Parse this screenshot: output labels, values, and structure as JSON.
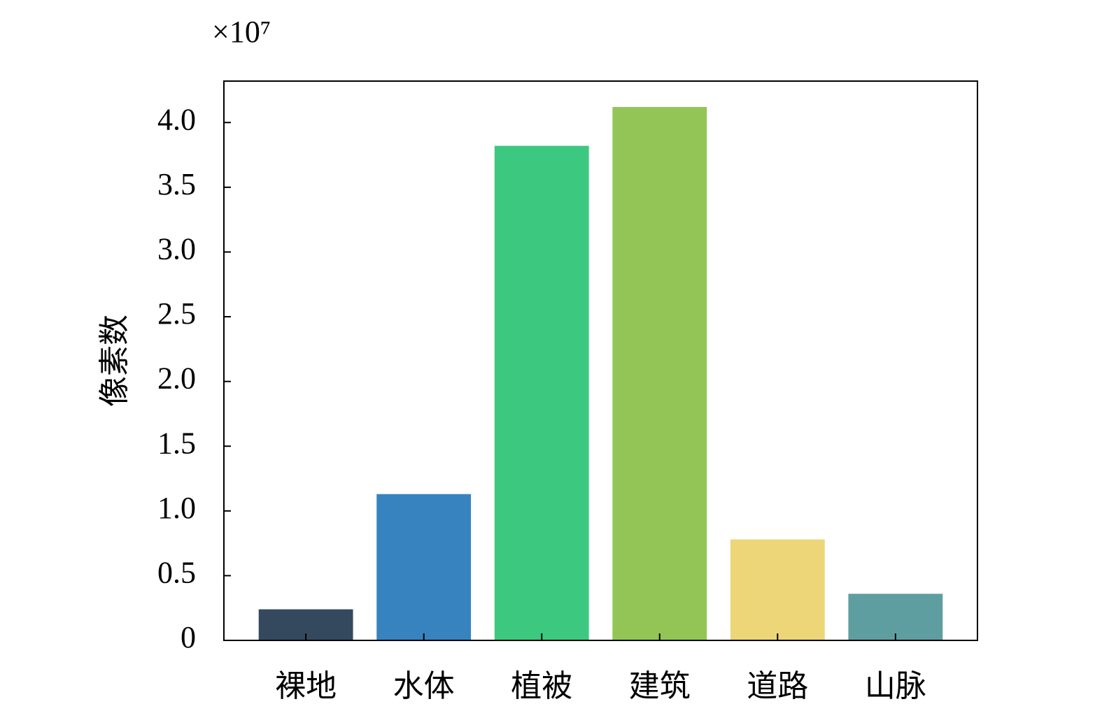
{
  "chart_data": {
    "type": "bar",
    "y_offset_text": "×10⁷",
    "ylabel": "像素数",
    "categories": [
      "裸地",
      "水体",
      "植被",
      "建筑",
      "道路",
      "山脉"
    ],
    "values": [
      0.24,
      1.13,
      3.82,
      4.12,
      0.78,
      0.36
    ],
    "colors": [
      "#34495e",
      "#3783bf",
      "#3cc97f",
      "#93c556",
      "#ecd678",
      "#5f9ea0"
    ],
    "ylim": [
      0,
      4.32
    ],
    "yticks": [
      0,
      0.5,
      {
        "value": 1,
        "label": "1.0"
      },
      1.5,
      {
        "value": 2,
        "label": "2.0"
      },
      2.5,
      {
        "value": 3,
        "label": "3.0"
      },
      3.5,
      {
        "value": 4,
        "label": "4.0"
      }
    ]
  }
}
